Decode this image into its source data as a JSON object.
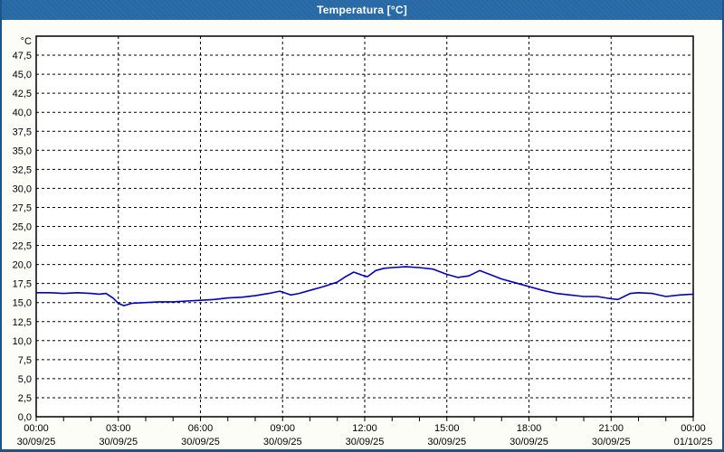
{
  "window": {
    "title": "Temperatura [°C]",
    "titlebar_bg": "#2769A6",
    "border_color": "#1D5586",
    "background": "#FDFDF8"
  },
  "chart_data": {
    "type": "line",
    "title": "Temperatura [°C]",
    "grid": "dashed",
    "legend": "none",
    "plot_bg": "#FFFFFF",
    "y_axis": {
      "unit_label": "°C",
      "min": 0,
      "max": 50,
      "tick_step": 2.5,
      "decimal_separator": ",",
      "tick_labels": [
        "47,5",
        "45,0",
        "42,5",
        "40,0",
        "37,5",
        "35,0",
        "32,5",
        "30,0",
        "27,5",
        "25,0",
        "22,5",
        "20,0",
        "17,5",
        "15,0",
        "12,5",
        "10,0",
        "7,5",
        "5,0",
        "2,5",
        "0,0"
      ]
    },
    "x_axis": {
      "min_hour": 0,
      "max_hour": 24,
      "major_tick_step_hours": 3,
      "minor_tick_step_hours": 1,
      "ticks": [
        {
          "hour": 0,
          "time": "00:00",
          "date": "30/09/25"
        },
        {
          "hour": 3,
          "time": "03:00",
          "date": "30/09/25"
        },
        {
          "hour": 6,
          "time": "06:00",
          "date": "30/09/25"
        },
        {
          "hour": 9,
          "time": "09:00",
          "date": "30/09/25"
        },
        {
          "hour": 12,
          "time": "12:00",
          "date": "30/09/25"
        },
        {
          "hour": 15,
          "time": "15:00",
          "date": "30/09/25"
        },
        {
          "hour": 18,
          "time": "18:00",
          "date": "30/09/25"
        },
        {
          "hour": 21,
          "time": "21:00",
          "date": "30/09/25"
        },
        {
          "hour": 24,
          "time": "00:00",
          "date": "01/10/25"
        }
      ]
    },
    "series": [
      {
        "name": "Temperatura",
        "color": "#0000C0",
        "points": [
          [
            0,
            16.3
          ],
          [
            0.5,
            16.3
          ],
          [
            1,
            16.2
          ],
          [
            1.5,
            16.3
          ],
          [
            2,
            16.2
          ],
          [
            2.3,
            16.1
          ],
          [
            2.55,
            16.2
          ],
          [
            2.8,
            15.6
          ],
          [
            3,
            14.9
          ],
          [
            3.2,
            14.6
          ],
          [
            3.5,
            14.9
          ],
          [
            4,
            15.0
          ],
          [
            4.5,
            15.1
          ],
          [
            5,
            15.1
          ],
          [
            5.5,
            15.2
          ],
          [
            6,
            15.3
          ],
          [
            6.5,
            15.4
          ],
          [
            7,
            15.6
          ],
          [
            7.5,
            15.7
          ],
          [
            8,
            15.9
          ],
          [
            8.5,
            16.2
          ],
          [
            8.9,
            16.5
          ],
          [
            9.3,
            16.0
          ],
          [
            9.6,
            16.2
          ],
          [
            10,
            16.6
          ],
          [
            10.5,
            17.1
          ],
          [
            11,
            17.7
          ],
          [
            11.3,
            18.4
          ],
          [
            11.6,
            19.0
          ],
          [
            11.9,
            18.6
          ],
          [
            12.1,
            18.4
          ],
          [
            12.4,
            19.2
          ],
          [
            12.7,
            19.5
          ],
          [
            13,
            19.6
          ],
          [
            13.5,
            19.7
          ],
          [
            14,
            19.6
          ],
          [
            14.5,
            19.4
          ],
          [
            15,
            18.7
          ],
          [
            15.4,
            18.3
          ],
          [
            15.8,
            18.5
          ],
          [
            16.2,
            19.2
          ],
          [
            16.5,
            18.8
          ],
          [
            17,
            18.1
          ],
          [
            17.5,
            17.6
          ],
          [
            18,
            17.1
          ],
          [
            18.5,
            16.6
          ],
          [
            19,
            16.2
          ],
          [
            19.5,
            16.0
          ],
          [
            20,
            15.8
          ],
          [
            20.5,
            15.8
          ],
          [
            21,
            15.5
          ],
          [
            21.25,
            15.4
          ],
          [
            21.7,
            16.2
          ],
          [
            22,
            16.3
          ],
          [
            22.5,
            16.2
          ],
          [
            23,
            15.8
          ],
          [
            23.5,
            16.0
          ],
          [
            24,
            16.1
          ]
        ]
      }
    ]
  }
}
